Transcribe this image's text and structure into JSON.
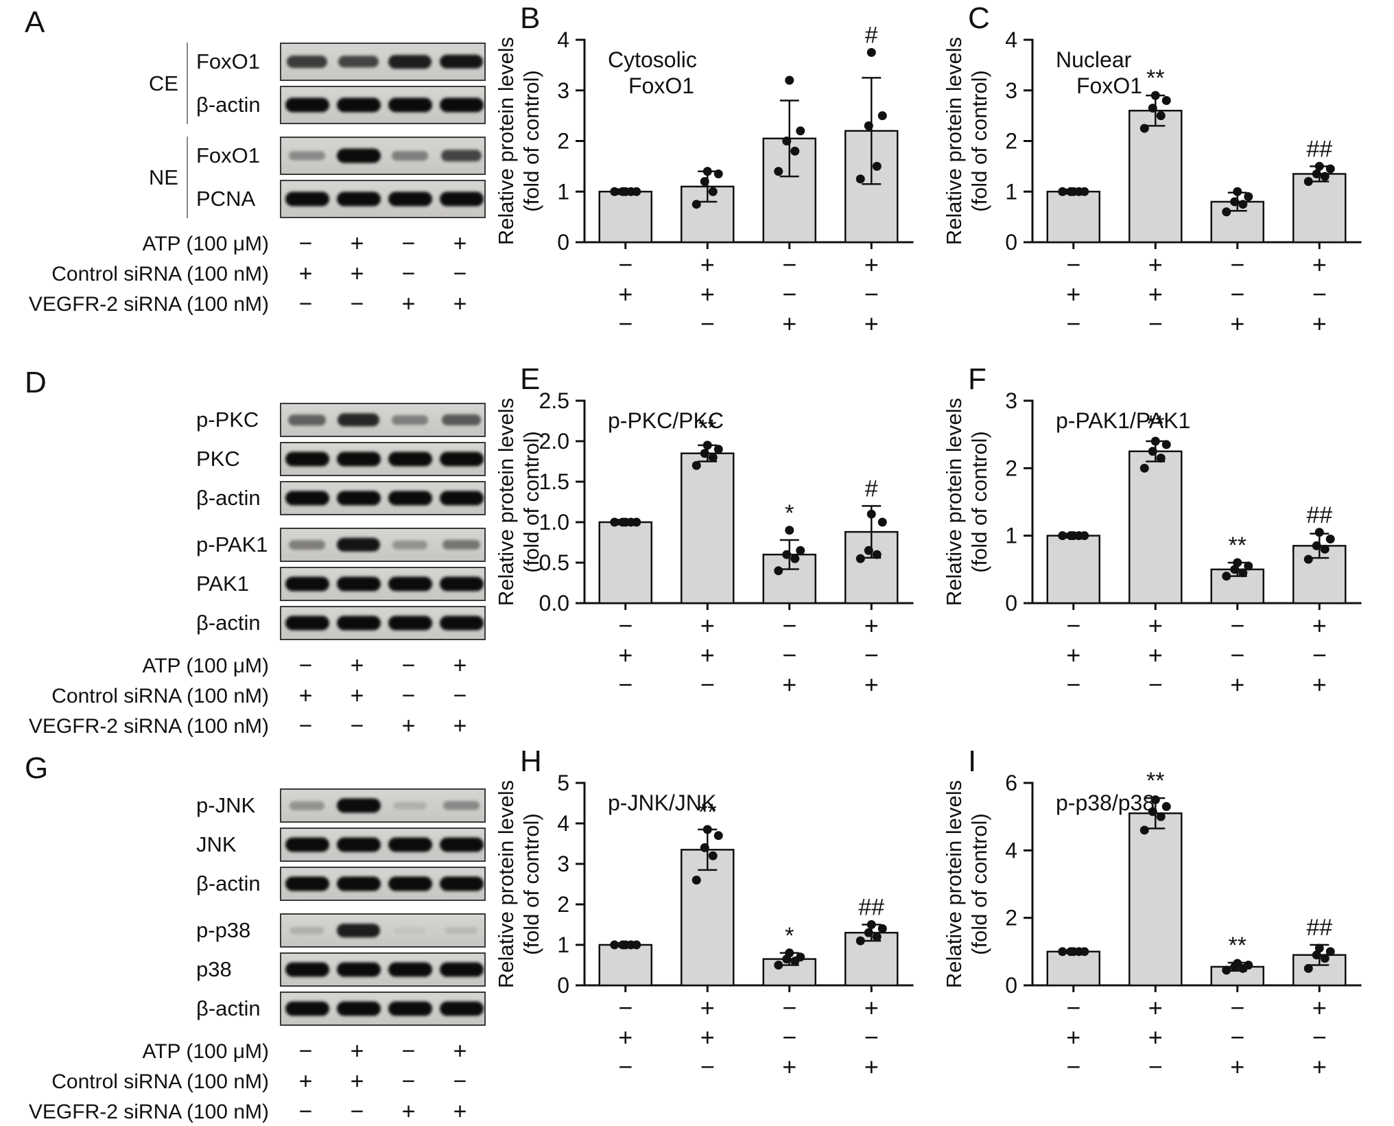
{
  "colors": {
    "bar_fill": "#d6d6d6",
    "axis": "#111111",
    "band": "#0b0b0b"
  },
  "treatment_rows": [
    {
      "label": "ATP (100 μM)",
      "signs": [
        "−",
        "+",
        "−",
        "+"
      ]
    },
    {
      "label": "Control siRNA (100 nM)",
      "signs": [
        "+",
        "+",
        "−",
        "−"
      ]
    },
    {
      "label": "VEGFR-2 siRNA (100 nM)",
      "signs": [
        "−",
        "−",
        "+",
        "+"
      ]
    }
  ],
  "blot_panels": [
    {
      "letter": "A",
      "groups": [
        {
          "bracket": "CE",
          "rows": [
            {
              "label": "FoxO1",
              "bands": [
                0.75,
                0.7,
                0.9,
                0.95
              ]
            },
            {
              "label": "β-actin",
              "bands": [
                1,
                1,
                1,
                1
              ]
            }
          ]
        },
        {
          "bracket": "NE",
          "rows": [
            {
              "label": "FoxO1",
              "bands": [
                0.35,
                1.0,
                0.4,
                0.7
              ]
            },
            {
              "label": "PCNA",
              "bands": [
                1,
                1,
                1,
                1
              ]
            }
          ]
        }
      ]
    },
    {
      "letter": "D",
      "groups": [
        {
          "bracket": "",
          "rows": [
            {
              "label": "p-PKC",
              "bands": [
                0.55,
                0.85,
                0.4,
                0.6
              ]
            },
            {
              "label": "PKC",
              "bands": [
                1,
                1,
                1,
                1
              ]
            },
            {
              "label": "β-actin",
              "bands": [
                1,
                1,
                1,
                1
              ]
            }
          ]
        },
        {
          "bracket": "",
          "rows": [
            {
              "label": "p-PAK1",
              "bands": [
                0.4,
                0.95,
                0.3,
                0.45
              ]
            },
            {
              "label": "PAK1",
              "bands": [
                1,
                1,
                1,
                1
              ]
            },
            {
              "label": "β-actin",
              "bands": [
                1,
                1,
                1,
                1
              ]
            }
          ]
        }
      ]
    },
    {
      "letter": "G",
      "groups": [
        {
          "bracket": "",
          "rows": [
            {
              "label": "p-JNK",
              "bands": [
                0.3,
                1.0,
                0.15,
                0.35
              ]
            },
            {
              "label": "JNK",
              "bands": [
                1,
                1,
                1,
                1
              ]
            },
            {
              "label": "β-actin",
              "bands": [
                1,
                1,
                1,
                1
              ]
            }
          ]
        },
        {
          "bracket": "",
          "rows": [
            {
              "label": "p-p38",
              "bands": [
                0.15,
                0.9,
                0.05,
                0.1
              ]
            },
            {
              "label": "p38",
              "bands": [
                1,
                1,
                1,
                1
              ]
            },
            {
              "label": "β-actin",
              "bands": [
                1,
                1,
                1,
                1
              ]
            }
          ]
        }
      ]
    }
  ],
  "chart_data": [
    {
      "panel": "B",
      "type": "bar",
      "title_lines": [
        "Cytosolic",
        "FoxO1"
      ],
      "ylabel_lines": [
        "Relative protein levels",
        "(fold of control)"
      ],
      "ylim": [
        0,
        4
      ],
      "yticks": [
        0,
        1,
        2,
        3,
        4
      ],
      "ytick_labels": [
        "0",
        "1",
        "2",
        "3",
        "4"
      ],
      "values": [
        1.0,
        1.1,
        2.05,
        2.2
      ],
      "errors": [
        0.05,
        0.3,
        0.75,
        1.05
      ],
      "annotations": [
        "",
        "",
        "",
        "#"
      ],
      "points": [
        [
          1,
          1,
          1,
          1,
          1
        ],
        [
          0.75,
          1.0,
          1.2,
          1.35,
          1.4
        ],
        [
          1.4,
          1.8,
          2.0,
          2.2,
          3.2
        ],
        [
          1.25,
          1.5,
          2.3,
          2.5,
          3.75
        ]
      ],
      "x_row_labels": [
        "ATP (100 μM)",
        "Control siRNA (100 nM)",
        "VEGFR-2 siRNA (100 nM)"
      ],
      "x_sign_rows": [
        [
          "−",
          "+",
          "−",
          "+"
        ],
        [
          "+",
          "+",
          "−",
          "−"
        ],
        [
          "−",
          "−",
          "+",
          "+"
        ]
      ]
    },
    {
      "panel": "C",
      "type": "bar",
      "title_lines": [
        "Nuclear",
        "FoxO1"
      ],
      "ylabel_lines": [
        "Relative protein levels",
        "(fold of control)"
      ],
      "ylim": [
        0,
        4
      ],
      "yticks": [
        0,
        1,
        2,
        3,
        4
      ],
      "ytick_labels": [
        "0",
        "1",
        "2",
        "3",
        "4"
      ],
      "values": [
        1.0,
        2.6,
        0.8,
        1.35
      ],
      "errors": [
        0.04,
        0.3,
        0.18,
        0.15
      ],
      "annotations": [
        "",
        "**",
        "",
        "##"
      ],
      "points": [
        [
          1,
          1,
          1,
          1,
          1
        ],
        [
          2.25,
          2.5,
          2.65,
          2.8,
          2.9
        ],
        [
          0.6,
          0.75,
          0.8,
          0.9,
          1.0
        ],
        [
          1.2,
          1.3,
          1.35,
          1.45,
          1.5
        ]
      ],
      "x_row_labels": [
        "ATP (100 μM)",
        "Control siRNA (100 nM)",
        "VEGFR-2 siRNA (100 nM)"
      ],
      "x_sign_rows": [
        [
          "−",
          "+",
          "−",
          "+"
        ],
        [
          "+",
          "+",
          "−",
          "−"
        ],
        [
          "−",
          "−",
          "+",
          "+"
        ]
      ]
    },
    {
      "panel": "E",
      "type": "bar",
      "title_lines": [
        "p-PKC/PKC"
      ],
      "ylabel_lines": [
        "Relative protein levels",
        "(fold of control)"
      ],
      "ylim": [
        0,
        2.5
      ],
      "yticks": [
        0,
        0.5,
        1,
        1.5,
        2,
        2.5
      ],
      "ytick_labels": [
        "0.0",
        "0.5",
        "1.0",
        "1.5",
        "2.0",
        "2.5"
      ],
      "values": [
        1.0,
        1.85,
        0.6,
        0.88
      ],
      "errors": [
        0.03,
        0.1,
        0.18,
        0.32
      ],
      "annotations": [
        "",
        "**",
        "*",
        "#"
      ],
      "points": [
        [
          1,
          1,
          1,
          1,
          1
        ],
        [
          1.7,
          1.8,
          1.85,
          1.9,
          1.95
        ],
        [
          0.4,
          0.55,
          0.6,
          0.65,
          0.9
        ],
        [
          0.55,
          0.6,
          0.65,
          1.0,
          1.1
        ]
      ],
      "x_row_labels": [
        "ATP (100 μM)",
        "Control siRNA (100 nM)",
        "VEGFR-2 siRNA (100 nM)"
      ],
      "x_sign_rows": [
        [
          "−",
          "+",
          "−",
          "+"
        ],
        [
          "+",
          "+",
          "−",
          "−"
        ],
        [
          "−",
          "−",
          "+",
          "+"
        ]
      ]
    },
    {
      "panel": "F",
      "type": "bar",
      "title_lines": [
        "p-PAK1/PAK1"
      ],
      "ylabel_lines": [
        "Relative protein levels",
        "(fold of control)"
      ],
      "ylim": [
        0,
        3
      ],
      "yticks": [
        0,
        1,
        2,
        3
      ],
      "ytick_labels": [
        "0",
        "1",
        "2",
        "3"
      ],
      "values": [
        1.0,
        2.25,
        0.5,
        0.85
      ],
      "errors": [
        0.03,
        0.15,
        0.1,
        0.18
      ],
      "annotations": [
        "",
        "**",
        "**",
        "##"
      ],
      "points": [
        [
          1,
          1,
          1,
          1,
          1
        ],
        [
          2.0,
          2.15,
          2.25,
          2.35,
          2.4
        ],
        [
          0.4,
          0.45,
          0.5,
          0.55,
          0.6
        ],
        [
          0.65,
          0.8,
          0.85,
          0.95,
          1.05
        ]
      ],
      "x_row_labels": [
        "ATP (100 μM)",
        "Control siRNA (100 nM)",
        "VEGFR-2 siRNA (100 nM)"
      ],
      "x_sign_rows": [
        [
          "−",
          "+",
          "−",
          "+"
        ],
        [
          "+",
          "+",
          "−",
          "−"
        ],
        [
          "−",
          "−",
          "+",
          "+"
        ]
      ]
    },
    {
      "panel": "H",
      "type": "bar",
      "title_lines": [
        "p-JNK/JNK"
      ],
      "ylabel_lines": [
        "Relative protein levels",
        "(fold of control)"
      ],
      "ylim": [
        0,
        5
      ],
      "yticks": [
        0,
        1,
        2,
        3,
        4,
        5
      ],
      "ytick_labels": [
        "0",
        "1",
        "2",
        "3",
        "4",
        "5"
      ],
      "values": [
        1.0,
        3.35,
        0.65,
        1.3
      ],
      "errors": [
        0.04,
        0.5,
        0.15,
        0.2
      ],
      "annotations": [
        "",
        "**",
        "*",
        "##"
      ],
      "points": [
        [
          1,
          1,
          1,
          1,
          1
        ],
        [
          2.6,
          3.2,
          3.4,
          3.7,
          3.85
        ],
        [
          0.5,
          0.6,
          0.65,
          0.7,
          0.8
        ],
        [
          1.1,
          1.2,
          1.3,
          1.4,
          1.5
        ]
      ],
      "x_row_labels": [
        "ATP (100 μM)",
        "Control siRNA (100 nM)",
        "VEGFR-2 siRNA (100 nM)"
      ],
      "x_sign_rows": [
        [
          "−",
          "+",
          "−",
          "+"
        ],
        [
          "+",
          "+",
          "−",
          "−"
        ],
        [
          "−",
          "−",
          "+",
          "+"
        ]
      ]
    },
    {
      "panel": "I",
      "type": "bar",
      "title_lines": [
        "p-p38/p38"
      ],
      "ylabel_lines": [
        "Relative protein levels",
        "(fold of control)"
      ],
      "ylim": [
        0,
        6
      ],
      "yticks": [
        0,
        2,
        4,
        6
      ],
      "ytick_labels": [
        "0",
        "2",
        "4",
        "6"
      ],
      "values": [
        1.0,
        5.1,
        0.55,
        0.9
      ],
      "errors": [
        0.04,
        0.45,
        0.12,
        0.3
      ],
      "annotations": [
        "",
        "**",
        "**",
        "##"
      ],
      "points": [
        [
          1,
          1,
          1,
          1,
          1
        ],
        [
          4.6,
          5.0,
          5.15,
          5.3,
          5.5
        ],
        [
          0.45,
          0.5,
          0.55,
          0.6,
          0.65
        ],
        [
          0.5,
          0.8,
          0.9,
          1.0,
          1.1
        ]
      ],
      "x_row_labels": [
        "ATP (100 μM)",
        "Control siRNA (100 nM)",
        "VEGFR-2 siRNA (100 nM)"
      ],
      "x_sign_rows": [
        [
          "−",
          "+",
          "−",
          "+"
        ],
        [
          "+",
          "+",
          "−",
          "−"
        ],
        [
          "−",
          "−",
          "+",
          "+"
        ]
      ]
    }
  ]
}
